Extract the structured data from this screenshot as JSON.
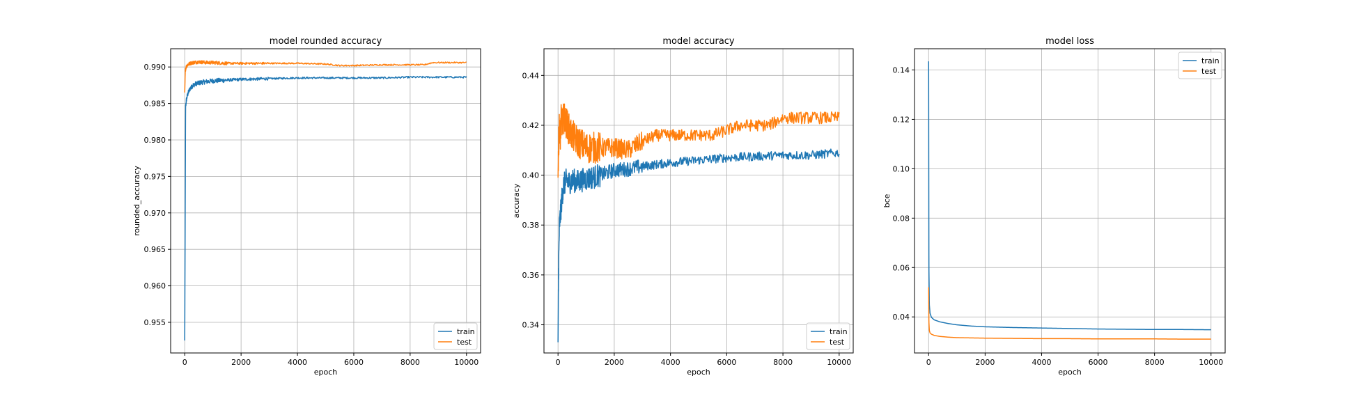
{
  "chart_data": [
    {
      "type": "line",
      "title": "model rounded accuracy",
      "xlabel": "epoch",
      "ylabel": "rounded_accuracy",
      "xlim": [
        -500,
        10500
      ],
      "ylim": [
        0.9508,
        0.9925
      ],
      "xticks": [
        0,
        2000,
        4000,
        6000,
        8000,
        10000
      ],
      "yticks": [
        0.955,
        0.96,
        0.965,
        0.97,
        0.975,
        0.98,
        0.985,
        0.99
      ],
      "ytick_labels": [
        "0.955",
        "0.960",
        "0.965",
        "0.970",
        "0.975",
        "0.980",
        "0.985",
        "0.990"
      ],
      "grid": true,
      "legend_position": "lower-right",
      "series": [
        {
          "name": "train",
          "color": "#1f77b4",
          "x": [
            0,
            30,
            60,
            100,
            150,
            200,
            300,
            400,
            600,
            800,
            1000,
            1500,
            2000,
            3000,
            4000,
            5000,
            6000,
            7000,
            8000,
            9000,
            10000
          ],
          "y": [
            0.9525,
            0.9845,
            0.9855,
            0.9862,
            0.9867,
            0.9871,
            0.9875,
            0.9877,
            0.9879,
            0.988,
            0.9881,
            0.9882,
            0.9883,
            0.9884,
            0.9885,
            0.9885,
            0.9885,
            0.9885,
            0.9886,
            0.9886,
            0.9886
          ],
          "noise": 0.0002
        },
        {
          "name": "test",
          "color": "#ff7f0e",
          "x": [
            0,
            20,
            50,
            100,
            200,
            300,
            500,
            800,
            1000,
            1500,
            2000,
            3000,
            4000,
            5000,
            5500,
            6000,
            7000,
            8000,
            8500,
            8800,
            9000,
            10000
          ],
          "y": [
            0.9865,
            0.9895,
            0.99,
            0.9903,
            0.9905,
            0.9906,
            0.9907,
            0.9906,
            0.9906,
            0.9905,
            0.9905,
            0.9905,
            0.9905,
            0.9904,
            0.9902,
            0.9902,
            0.9903,
            0.9903,
            0.9903,
            0.9906,
            0.9906,
            0.9906
          ],
          "noise": 0.00015
        }
      ]
    },
    {
      "type": "line",
      "title": "model accuracy",
      "xlabel": "epoch",
      "ylabel": "accuracy",
      "xlim": [
        -500,
        10500
      ],
      "ylim": [
        0.3287,
        0.4507
      ],
      "xticks": [
        0,
        2000,
        4000,
        6000,
        8000,
        10000
      ],
      "yticks": [
        0.34,
        0.36,
        0.38,
        0.4,
        0.42,
        0.44
      ],
      "ytick_labels": [
        "0.34",
        "0.36",
        "0.38",
        "0.40",
        "0.42",
        "0.44"
      ],
      "grid": true,
      "legend_position": "lower-right",
      "series": [
        {
          "name": "train",
          "color": "#1f77b4",
          "x": [
            0,
            20,
            50,
            100,
            150,
            200,
            300,
            400,
            500,
            700,
            1000,
            1500,
            2000,
            2500,
            3000,
            4000,
            5000,
            6000,
            7000,
            8000,
            9000,
            10000
          ],
          "y": [
            0.333,
            0.362,
            0.38,
            0.386,
            0.392,
            0.396,
            0.398,
            0.397,
            0.398,
            0.3975,
            0.3985,
            0.4,
            0.402,
            0.4025,
            0.4035,
            0.405,
            0.406,
            0.407,
            0.4075,
            0.408,
            0.408,
            0.409
          ],
          "noise": 0.003
        },
        {
          "name": "test",
          "color": "#ff7f0e",
          "x": [
            0,
            20,
            50,
            80,
            120,
            160,
            200,
            300,
            400,
            500,
            700,
            1000,
            1500,
            2000,
            2500,
            3000,
            3500,
            4000,
            4500,
            5000,
            5500,
            6000,
            6500,
            7000,
            7500,
            8000,
            8500,
            9000,
            10000
          ],
          "y": [
            0.399,
            0.412,
            0.42,
            0.415,
            0.424,
            0.42,
            0.423,
            0.421,
            0.418,
            0.416,
            0.4135,
            0.411,
            0.411,
            0.411,
            0.41,
            0.4135,
            0.416,
            0.416,
            0.416,
            0.416,
            0.416,
            0.418,
            0.42,
            0.42,
            0.42,
            0.423,
            0.423,
            0.423,
            0.423
          ],
          "noise": 0.004
        }
      ]
    },
    {
      "type": "line",
      "title": "model loss",
      "xlabel": "epoch",
      "ylabel": "bce",
      "xlim": [
        -500,
        10500
      ],
      "ylim": [
        0.0254,
        0.1486
      ],
      "xticks": [
        0,
        2000,
        4000,
        6000,
        8000,
        10000
      ],
      "yticks": [
        0.04,
        0.06,
        0.08,
        0.1,
        0.12,
        0.14
      ],
      "ytick_labels": [
        "0.04",
        "0.06",
        "0.08",
        "0.10",
        "0.12",
        "0.14"
      ],
      "grid": true,
      "legend_position": "upper-right",
      "series": [
        {
          "name": "train",
          "color": "#1f77b4",
          "x": [
            0,
            10,
            25,
            50,
            100,
            200,
            400,
            700,
            1000,
            1500,
            2000,
            3000,
            4000,
            5000,
            6000,
            7000,
            8000,
            9000,
            10000
          ],
          "y": [
            0.1435,
            0.06,
            0.045,
            0.0415,
            0.0398,
            0.0388,
            0.038,
            0.0373,
            0.0368,
            0.0363,
            0.036,
            0.0357,
            0.0355,
            0.0353,
            0.0351,
            0.035,
            0.0349,
            0.0349,
            0.0348
          ],
          "noise": 0
        },
        {
          "name": "test",
          "color": "#ff7f0e",
          "x": [
            0,
            10,
            25,
            50,
            100,
            200,
            400,
            700,
            1000,
            1500,
            2000,
            3000,
            4000,
            5000,
            6000,
            7000,
            8000,
            9000,
            10000
          ],
          "y": [
            0.052,
            0.038,
            0.0345,
            0.0335,
            0.033,
            0.0325,
            0.0321,
            0.0318,
            0.0316,
            0.0315,
            0.0314,
            0.0313,
            0.0312,
            0.0312,
            0.0311,
            0.0311,
            0.0311,
            0.031,
            0.031
          ],
          "noise": 0
        }
      ]
    }
  ]
}
